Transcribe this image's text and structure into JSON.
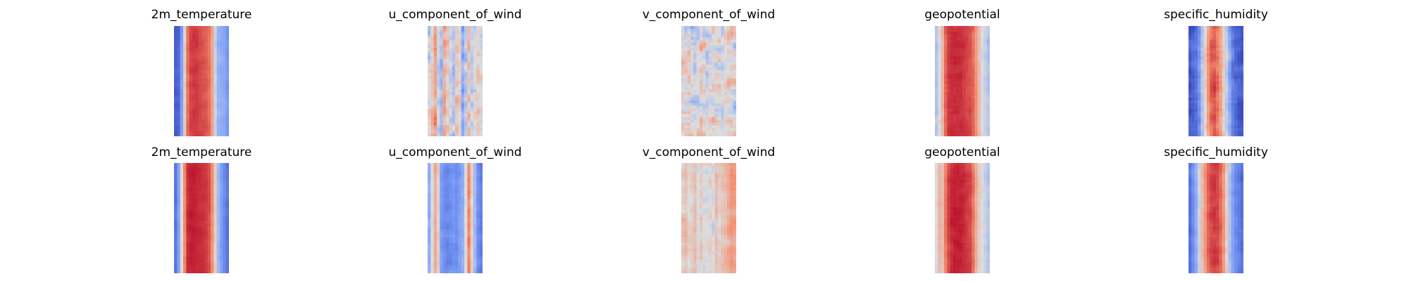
{
  "chart_data": [
    {
      "type": "heatmap",
      "title": "2m_temperature",
      "row": 0,
      "col": 0,
      "colormap": "coolwarm",
      "axes": "off",
      "profile": [
        0.06,
        0.08,
        0.25,
        0.55,
        0.8,
        0.88,
        0.9,
        0.9,
        0.88,
        0.86,
        0.84,
        0.8,
        0.68,
        0.45,
        0.32,
        0.3,
        0.28,
        0.22
      ],
      "noise": 0.06,
      "seed": 11
    },
    {
      "type": "heatmap",
      "title": "u_component_of_wind",
      "row": 0,
      "col": 1,
      "colormap": "coolwarm",
      "axes": "off",
      "profile": [
        0.5,
        0.6,
        0.7,
        0.45,
        0.35,
        0.65,
        0.55,
        0.45,
        0.4,
        0.6,
        0.55,
        0.3,
        0.4,
        0.6,
        0.45,
        0.5,
        0.55,
        0.5
      ],
      "noise": 0.22,
      "seed": 23
    },
    {
      "type": "heatmap",
      "title": "v_component_of_wind",
      "row": 0,
      "col": 2,
      "colormap": "coolwarm",
      "axes": "off",
      "profile": [
        0.5,
        0.48,
        0.52,
        0.5,
        0.47,
        0.5,
        0.53,
        0.5,
        0.46,
        0.5,
        0.52,
        0.49,
        0.5,
        0.47,
        0.5,
        0.52,
        0.5,
        0.48
      ],
      "noise": 0.28,
      "seed": 37
    },
    {
      "type": "heatmap",
      "title": "geopotential",
      "row": 0,
      "col": 3,
      "colormap": "coolwarm",
      "axes": "off",
      "profile": [
        0.4,
        0.5,
        0.62,
        0.82,
        0.9,
        0.92,
        0.92,
        0.92,
        0.92,
        0.9,
        0.88,
        0.86,
        0.82,
        0.72,
        0.6,
        0.5,
        0.45,
        0.4
      ],
      "noise": 0.07,
      "seed": 41
    },
    {
      "type": "heatmap",
      "title": "specific_humidity",
      "row": 0,
      "col": 4,
      "colormap": "coolwarm",
      "axes": "off",
      "profile": [
        0.05,
        0.08,
        0.12,
        0.22,
        0.4,
        0.55,
        0.72,
        0.82,
        0.85,
        0.8,
        0.7,
        0.55,
        0.42,
        0.28,
        0.15,
        0.1,
        0.07,
        0.05
      ],
      "noise": 0.14,
      "seed": 53
    },
    {
      "type": "heatmap",
      "title": "2m_temperature",
      "row": 1,
      "col": 0,
      "colormap": "coolwarm",
      "axes": "off",
      "profile": [
        0.12,
        0.25,
        0.5,
        0.75,
        0.92,
        0.95,
        0.95,
        0.94,
        0.93,
        0.92,
        0.9,
        0.86,
        0.75,
        0.55,
        0.35,
        0.25,
        0.18,
        0.12
      ],
      "noise": 0.05,
      "seed": 61
    },
    {
      "type": "heatmap",
      "title": "u_component_of_wind",
      "row": 1,
      "col": 1,
      "colormap": "coolwarm",
      "axes": "off",
      "profile": [
        0.3,
        0.5,
        0.65,
        0.55,
        0.25,
        0.2,
        0.18,
        0.2,
        0.22,
        0.2,
        0.25,
        0.3,
        0.5,
        0.75,
        0.55,
        0.35,
        0.2,
        0.15
      ],
      "noise": 0.08,
      "seed": 71
    },
    {
      "type": "heatmap",
      "title": "v_component_of_wind",
      "row": 1,
      "col": 2,
      "colormap": "coolwarm",
      "axes": "off",
      "profile": [
        0.55,
        0.58,
        0.52,
        0.55,
        0.6,
        0.5,
        0.55,
        0.5,
        0.52,
        0.55,
        0.5,
        0.6,
        0.55,
        0.58,
        0.6,
        0.65,
        0.72,
        0.7
      ],
      "noise": 0.12,
      "seed": 83
    },
    {
      "type": "heatmap",
      "title": "geopotential",
      "row": 1,
      "col": 3,
      "colormap": "coolwarm",
      "axes": "off",
      "profile": [
        0.5,
        0.62,
        0.6,
        0.78,
        0.88,
        0.93,
        0.95,
        0.95,
        0.95,
        0.93,
        0.9,
        0.88,
        0.8,
        0.65,
        0.55,
        0.5,
        0.45,
        0.4
      ],
      "noise": 0.06,
      "seed": 97
    },
    {
      "type": "heatmap",
      "title": "specific_humidity",
      "row": 1,
      "col": 4,
      "colormap": "coolwarm",
      "axes": "off",
      "profile": [
        0.12,
        0.2,
        0.3,
        0.45,
        0.6,
        0.72,
        0.82,
        0.88,
        0.9,
        0.88,
        0.82,
        0.72,
        0.55,
        0.38,
        0.25,
        0.18,
        0.14,
        0.1
      ],
      "noise": 0.08,
      "seed": 103
    }
  ]
}
